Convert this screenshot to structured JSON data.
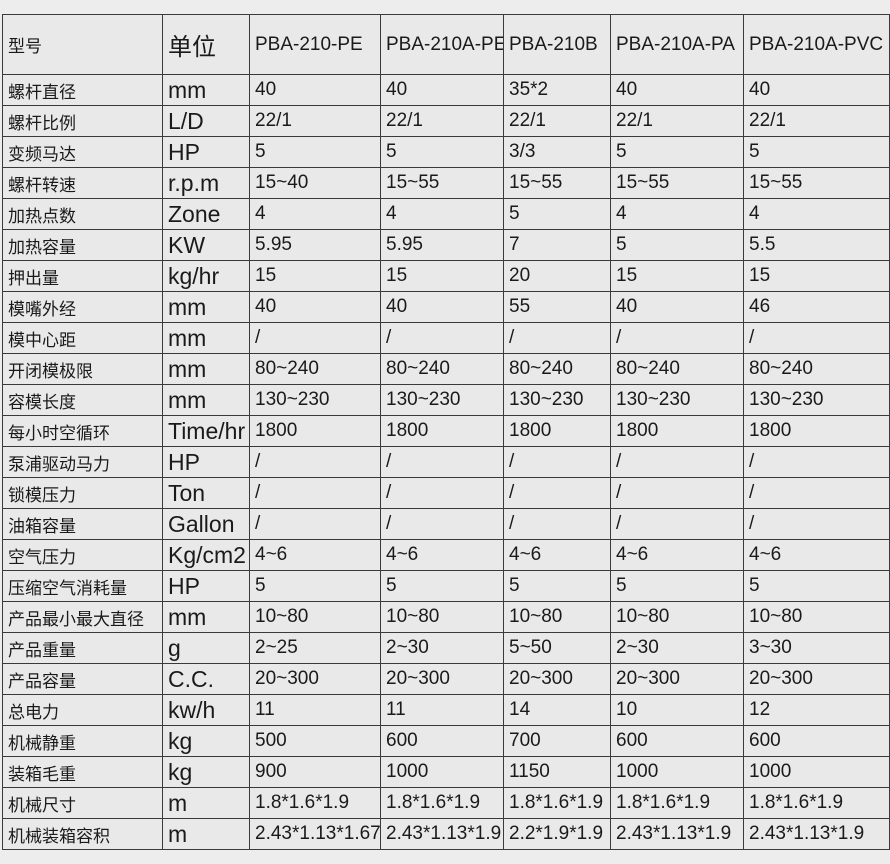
{
  "colors": {
    "page_background": "#ededed",
    "cell_background": "#e9e9e9",
    "border": "#3a3a3a",
    "text": "#1a1a1a"
  },
  "chart_data": {
    "type": "table",
    "title": "",
    "header": {
      "model_label": "型号",
      "unit_label": "单位",
      "models": [
        "PBA-210-PE",
        "PBA-210A-PE",
        "PBA-210B",
        "PBA-210A-PA",
        "PBA-210A-PVC"
      ]
    },
    "rows": [
      {
        "label": "螺杆直径",
        "unit": "mm",
        "values": [
          "40",
          "40",
          "35*2",
          "40",
          "40"
        ]
      },
      {
        "label": "螺杆比例",
        "unit": "L/D",
        "values": [
          "22/1",
          "22/1",
          "22/1",
          "22/1",
          "22/1"
        ]
      },
      {
        "label": "变频马达",
        "unit": "HP",
        "values": [
          "5",
          "5",
          "3/3",
          "5",
          "5"
        ]
      },
      {
        "label": "螺杆转速",
        "unit": "r.p.m",
        "values": [
          "15~40",
          "15~55",
          "15~55",
          "15~55",
          "15~55"
        ]
      },
      {
        "label": "加热点数",
        "unit": "Zone",
        "values": [
          "4",
          "4",
          "5",
          "4",
          "4"
        ]
      },
      {
        "label": "加热容量",
        "unit": "KW",
        "values": [
          "5.95",
          "5.95",
          "7",
          "5",
          "5.5"
        ]
      },
      {
        "label": "押出量",
        "unit": "kg/hr",
        "values": [
          "15",
          "15",
          "20",
          "15",
          "15"
        ]
      },
      {
        "label": "模嘴外经",
        "unit": "mm",
        "values": [
          "40",
          "40",
          "55",
          "40",
          "46"
        ]
      },
      {
        "label": "模中心距",
        "unit": "mm",
        "values": [
          "/",
          "/",
          "/",
          "/",
          "/"
        ]
      },
      {
        "label": "开闭模极限",
        "unit": "mm",
        "values": [
          "80~240",
          "80~240",
          "80~240",
          "80~240",
          "80~240"
        ]
      },
      {
        "label": "容模长度",
        "unit": "mm",
        "values": [
          "130~230",
          "130~230",
          "130~230",
          "130~230",
          "130~230"
        ]
      },
      {
        "label": "每小时空循环",
        "unit": "Time/hr",
        "values": [
          "1800",
          "1800",
          "1800",
          "1800",
          "1800"
        ]
      },
      {
        "label": "泵浦驱动马力",
        "unit": "HP",
        "values": [
          "/",
          "/",
          "/",
          "/",
          "/"
        ]
      },
      {
        "label": "锁模压力",
        "unit": "Ton",
        "values": [
          "/",
          "/",
          "/",
          "/",
          "/"
        ]
      },
      {
        "label": "油箱容量",
        "unit": "Gallon",
        "values": [
          "/",
          "/",
          "/",
          "/",
          "/"
        ]
      },
      {
        "label": "空气压力",
        "unit": "Kg/cm2",
        "values": [
          "4~6",
          "4~6",
          "4~6",
          "4~6",
          "4~6"
        ]
      },
      {
        "label": "压缩空气消耗量",
        "unit": "HP",
        "values": [
          "5",
          "5",
          "5",
          "5",
          "5"
        ]
      },
      {
        "label": "产品最小最大直径",
        "unit": "mm",
        "values": [
          "10~80",
          "10~80",
          "10~80",
          "10~80",
          "10~80"
        ]
      },
      {
        "label": "产品重量",
        "unit": "g",
        "values": [
          "2~25",
          "2~30",
          "5~50",
          "2~30",
          "3~30"
        ]
      },
      {
        "label": "产品容量",
        "unit": "C.C.",
        "values": [
          "20~300",
          "20~300",
          "20~300",
          "20~300",
          "20~300"
        ]
      },
      {
        "label": "总电力",
        "unit": "kw/h",
        "values": [
          "11",
          "11",
          "14",
          "10",
          "12"
        ]
      },
      {
        "label": "机械静重",
        "unit": "kg",
        "values": [
          "500",
          "600",
          "700",
          "600",
          "600"
        ]
      },
      {
        "label": "装箱毛重",
        "unit": "kg",
        "values": [
          "900",
          "1000",
          "1150",
          "1000",
          "1000"
        ]
      },
      {
        "label": "机械尺寸",
        "unit": "m",
        "values": [
          "1.8*1.6*1.9",
          "1.8*1.6*1.9",
          "1.8*1.6*1.9",
          "1.8*1.6*1.9",
          "1.8*1.6*1.9"
        ]
      },
      {
        "label": "机械装箱容积",
        "unit": "m",
        "values": [
          "2.43*1.13*1.67",
          "2.43*1.13*1.9",
          "2.2*1.9*1.9",
          "2.43*1.13*1.9",
          "2.43*1.13*1.9"
        ]
      }
    ]
  }
}
